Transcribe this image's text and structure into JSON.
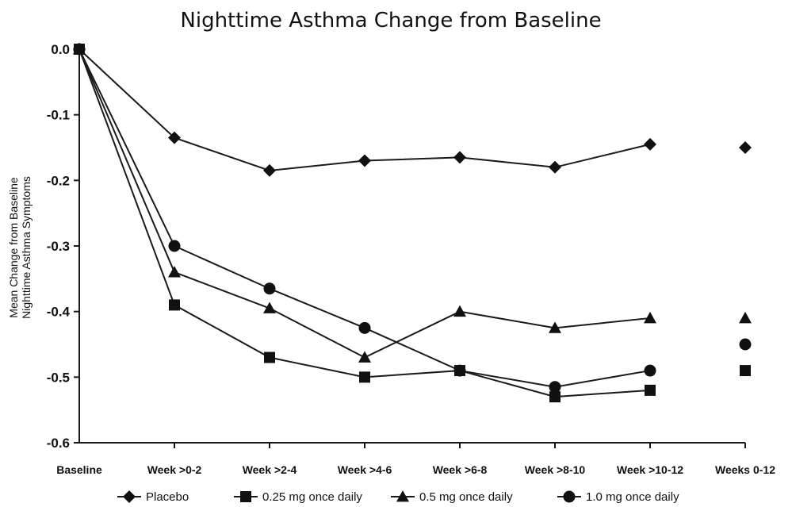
{
  "chart_data": {
    "type": "line",
    "title": "Nighttime Asthma Change from Baseline",
    "xlabel": "",
    "ylabel_lines": [
      "Mean Change from Baseline",
      "Nighttime Asthma Symptoms"
    ],
    "categories": [
      "Baseline",
      "Week >0-2",
      "Week >2-4",
      "Week >4-6",
      "Week >6-8",
      "Week >8-10",
      "Week >10-12",
      "Weeks 0-12"
    ],
    "y_ticks": [
      "0.0",
      "-0.1",
      "-0.2",
      "-0.3",
      "-0.4",
      "-0.5",
      "-0.6"
    ],
    "ylim": [
      -0.6,
      0.0
    ],
    "grid": false,
    "legend_position": "bottom",
    "series": [
      {
        "name": "Placebo",
        "marker": "diamond",
        "values": [
          0.0,
          -0.135,
          -0.185,
          -0.17,
          -0.165,
          -0.18,
          -0.145,
          -0.15
        ]
      },
      {
        "name": "0.25 mg once daily",
        "marker": "square",
        "values": [
          0.0,
          -0.39,
          -0.47,
          -0.5,
          -0.49,
          -0.53,
          -0.52,
          -0.49
        ]
      },
      {
        "name": "0.5 mg once daily",
        "marker": "triangle",
        "values": [
          0.0,
          -0.34,
          -0.395,
          -0.47,
          -0.4,
          -0.425,
          -0.41,
          -0.41
        ]
      },
      {
        "name": "1.0 mg once daily",
        "marker": "circle",
        "values": [
          0.0,
          -0.3,
          -0.365,
          -0.425,
          -0.49,
          -0.515,
          -0.49,
          -0.45
        ]
      }
    ],
    "connect_last_point": false,
    "colors": {
      "line": "#1a1a1a",
      "marker": "#111111"
    }
  }
}
